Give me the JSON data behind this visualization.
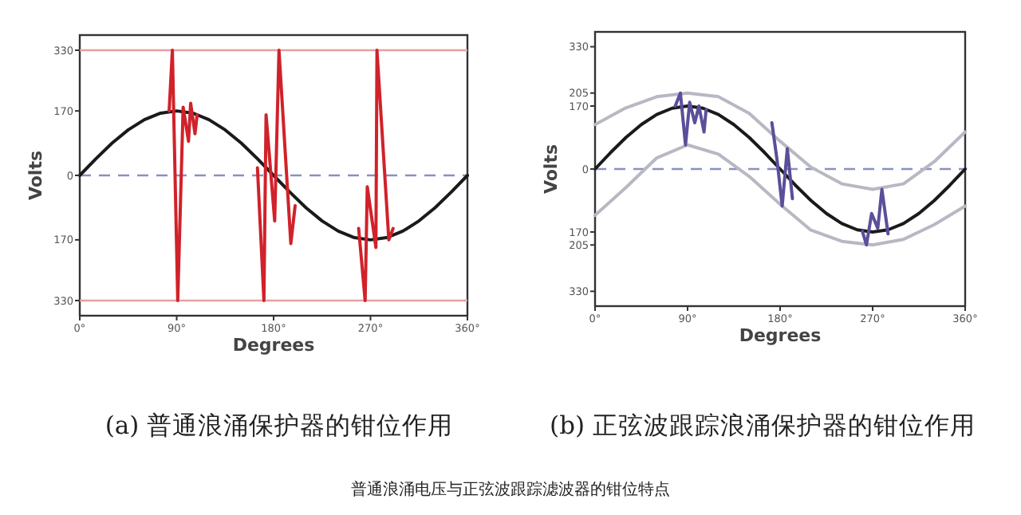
{
  "chart_data": [
    {
      "type": "line",
      "title": "(a)  普通浪涌保护器的钳位作用",
      "xlabel": "Degrees",
      "ylabel": "Volts",
      "xlim": [
        0,
        360
      ],
      "ylim": [
        -370,
        370
      ],
      "xticks": [
        {
          "value": 0,
          "label": "0°"
        },
        {
          "value": 90,
          "label": "90°"
        },
        {
          "value": 180,
          "label": "180°"
        },
        {
          "value": 270,
          "label": "270°"
        },
        {
          "value": 360,
          "label": "360°"
        }
      ],
      "yticks": [
        {
          "value": 330,
          "label": "330"
        },
        {
          "value": 170,
          "label": "170"
        },
        {
          "value": 0,
          "label": "0"
        },
        {
          "value": -170,
          "label": "170"
        },
        {
          "value": -330,
          "label": "330"
        }
      ],
      "grid": false,
      "ref_lines": [
        {
          "axis": "y",
          "value": 330,
          "color": "#e8a0a0",
          "line_style": "solid"
        },
        {
          "axis": "y",
          "value": -330,
          "color": "#e8a0a0",
          "line_style": "solid"
        },
        {
          "axis": "y",
          "value": 0,
          "color": "#8890c0",
          "line_style": "dashed"
        }
      ],
      "series": [
        {
          "color": "#1a1a1a",
          "x": [
            0,
            15,
            30,
            45,
            60,
            75,
            90,
            105,
            120,
            135,
            150,
            165,
            180,
            195,
            210,
            225,
            240,
            255,
            270,
            285,
            300,
            315,
            330,
            345,
            360
          ],
          "values": [
            0,
            44,
            85,
            120,
            147,
            164,
            170,
            164,
            147,
            120,
            85,
            44,
            0,
            -44,
            -85,
            -120,
            -147,
            -164,
            -170,
            -164,
            -147,
            -120,
            -85,
            -44,
            0
          ]
        },
        {
          "color": "#d0222a",
          "x": [
            83,
            86,
            91,
            96,
            101,
            103,
            107,
            109,
            null,
            165,
            171,
            173,
            181,
            185,
            196,
            200,
            null,
            259,
            265,
            267,
            275,
            276,
            287,
            291
          ],
          "values": [
            170,
            330,
            -330,
            180,
            90,
            190,
            110,
            160,
            null,
            20,
            -330,
            160,
            -120,
            330,
            -180,
            -80,
            null,
            -140,
            -330,
            -30,
            -190,
            330,
            -170,
            -140
          ]
        }
      ]
    },
    {
      "type": "line",
      "title": "(b)  正弦波跟踪浪涌保护器的钳位作用",
      "xlabel": "Degrees",
      "ylabel": "Volts",
      "xlim": [
        0,
        360
      ],
      "ylim": [
        -370,
        370
      ],
      "xticks": [
        {
          "value": 0,
          "label": "0°"
        },
        {
          "value": 90,
          "label": "90°"
        },
        {
          "value": 180,
          "label": "180°"
        },
        {
          "value": 270,
          "label": "270°"
        },
        {
          "value": 360,
          "label": "360°"
        }
      ],
      "yticks": [
        {
          "value": 330,
          "label": "330"
        },
        {
          "value": 205,
          "label": "205"
        },
        {
          "value": 170,
          "label": "170"
        },
        {
          "value": 0,
          "label": "0"
        },
        {
          "value": -170,
          "label": "170"
        },
        {
          "value": -205,
          "label": "205"
        },
        {
          "value": -330,
          "label": "330"
        }
      ],
      "grid": false,
      "ref_lines": [
        {
          "axis": "y",
          "value": 0,
          "color": "#8890c0",
          "line_style": "dashed"
        }
      ],
      "annotations": [
        "普通浪涌电压与正弦波跟踪滤波器的钳位特点"
      ],
      "series": [
        {
          "color": "#b8b8c4",
          "x": [
            0,
            30,
            60,
            90,
            120,
            150,
            180,
            210,
            240,
            270,
            300,
            330,
            360
          ],
          "values": [
            120,
            165,
            195,
            205,
            195,
            150,
            75,
            5,
            -40,
            -55,
            -40,
            20,
            100
          ]
        },
        {
          "color": "#b8b8c4",
          "x": [
            0,
            30,
            60,
            90,
            120,
            150,
            180,
            210,
            240,
            270,
            300,
            330,
            360
          ],
          "values": [
            -125,
            -50,
            30,
            65,
            40,
            -20,
            -95,
            -165,
            -195,
            -205,
            -190,
            -150,
            -100
          ]
        },
        {
          "color": "#1a1a1a",
          "x": [
            0,
            15,
            30,
            45,
            60,
            75,
            90,
            105,
            120,
            135,
            150,
            165,
            180,
            195,
            210,
            225,
            240,
            255,
            270,
            285,
            300,
            315,
            330,
            345,
            360
          ],
          "values": [
            0,
            44,
            85,
            120,
            147,
            164,
            170,
            164,
            147,
            120,
            85,
            44,
            0,
            -44,
            -85,
            -120,
            -147,
            -164,
            -170,
            -164,
            -147,
            -120,
            -85,
            -44,
            0
          ]
        },
        {
          "color": "#5a4f9a",
          "x": [
            78,
            83,
            88,
            92,
            97,
            101,
            106,
            108,
            null,
            172,
            177,
            182,
            187,
            192,
            null,
            260,
            264,
            269,
            275,
            279,
            285
          ],
          "values": [
            170,
            205,
            65,
            180,
            125,
            170,
            100,
            160,
            null,
            125,
            25,
            -100,
            55,
            -80,
            null,
            -168,
            -205,
            -120,
            -160,
            -55,
            -175
          ]
        }
      ]
    }
  ]
}
